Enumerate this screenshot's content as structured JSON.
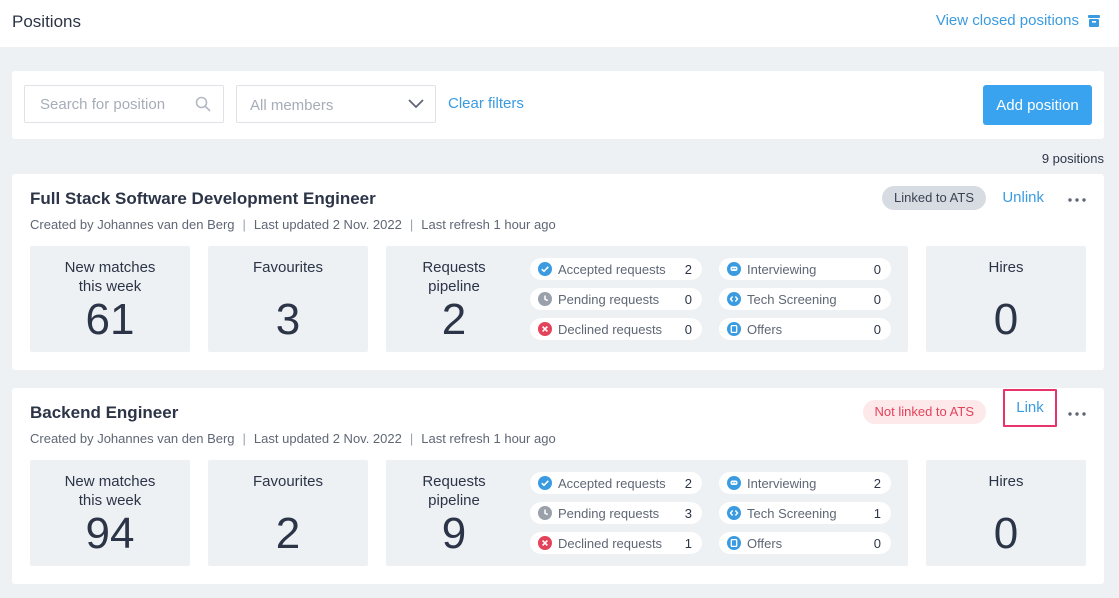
{
  "header": {
    "title": "Positions",
    "closed_link": "View closed positions"
  },
  "filters": {
    "search_placeholder": "Search for position",
    "members_value": "All members",
    "clear_label": "Clear filters",
    "add_label": "Add position"
  },
  "count_label": "9 positions",
  "colors": {
    "accent": "#3aa3ef",
    "link": "#3a9be0",
    "highlight": "#e8336b",
    "declined": "#e3425b"
  },
  "positions": [
    {
      "title": "Full Stack Software Development Engineer",
      "created_by": "Created by Johannes van den Berg",
      "updated": "Last updated 2 Nov. 2022",
      "refresh": "Last refresh 1 hour ago",
      "ats_badge": "Linked to ATS",
      "ats_action": "Unlink",
      "new_matches_label": "New matches this week",
      "new_matches": "61",
      "favourites_label": "Favourites",
      "favourites": "3",
      "pipeline_label": "Requests pipeline",
      "pipeline": "2",
      "stages": [
        {
          "label": "Accepted requests",
          "value": "2",
          "icon": "check-circle-icon"
        },
        {
          "label": "Pending requests",
          "value": "0",
          "icon": "clock-icon"
        },
        {
          "label": "Declined requests",
          "value": "0",
          "icon": "x-circle-icon"
        },
        {
          "label": "Interviewing",
          "value": "0",
          "icon": "chat-bubble-icon"
        },
        {
          "label": "Tech Screening",
          "value": "0",
          "icon": "code-icon"
        },
        {
          "label": "Offers",
          "value": "0",
          "icon": "document-icon"
        }
      ],
      "hires_label": "Hires",
      "hires": "0"
    },
    {
      "title": "Backend Engineer",
      "created_by": "Created by Johannes van den Berg",
      "updated": "Last updated 2 Nov. 2022",
      "refresh": "Last refresh 1 hour ago",
      "ats_badge": "Not linked to ATS",
      "ats_action": "Link",
      "new_matches_label": "New matches this week",
      "new_matches": "94",
      "favourites_label": "Favourites",
      "favourites": "2",
      "pipeline_label": "Requests pipeline",
      "pipeline": "9",
      "stages": [
        {
          "label": "Accepted requests",
          "value": "2",
          "icon": "check-circle-icon"
        },
        {
          "label": "Pending requests",
          "value": "3",
          "icon": "clock-icon"
        },
        {
          "label": "Declined requests",
          "value": "1",
          "icon": "x-circle-icon"
        },
        {
          "label": "Interviewing",
          "value": "2",
          "icon": "chat-bubble-icon"
        },
        {
          "label": "Tech Screening",
          "value": "1",
          "icon": "code-icon"
        },
        {
          "label": "Offers",
          "value": "0",
          "icon": "document-icon"
        }
      ],
      "hires_label": "Hires",
      "hires": "0"
    }
  ]
}
